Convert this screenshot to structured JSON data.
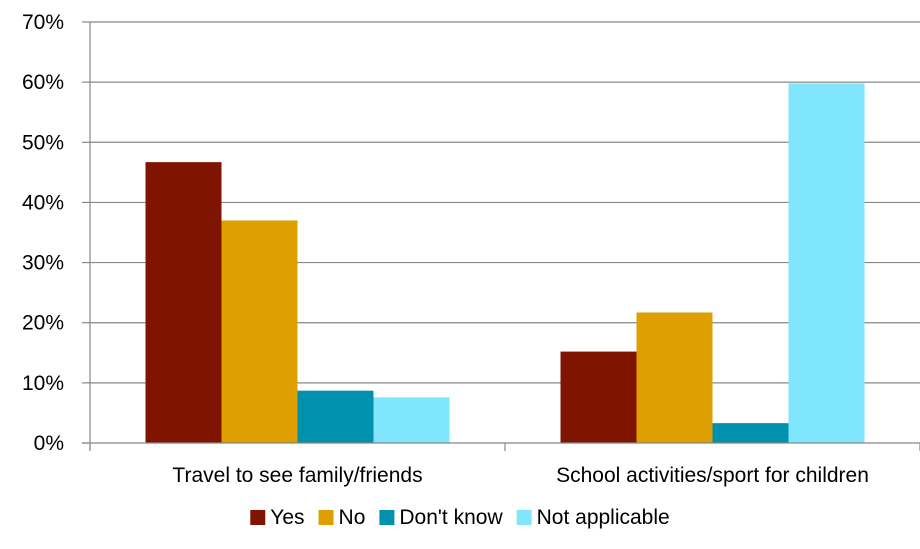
{
  "chart_data": {
    "type": "bar",
    "categories": [
      "Travel to see family/friends",
      "School activities/sport for children"
    ],
    "series": [
      {
        "name": "Yes",
        "values": [
          46.7,
          15.2
        ],
        "color": "#7F1500"
      },
      {
        "name": "No",
        "values": [
          37.0,
          21.7
        ],
        "color": "#DDA000"
      },
      {
        "name": "Don't know",
        "values": [
          8.7,
          3.3
        ],
        "color": "#0091AE"
      },
      {
        "name": "Not applicable",
        "values": [
          7.6,
          59.8
        ],
        "color": "#7FE6FD"
      }
    ],
    "ylim": [
      0,
      70
    ],
    "yticks": [
      "0%",
      "10%",
      "20%",
      "30%",
      "40%",
      "50%",
      "60%",
      "70%"
    ],
    "grid": true,
    "legend_position": "bottom"
  }
}
